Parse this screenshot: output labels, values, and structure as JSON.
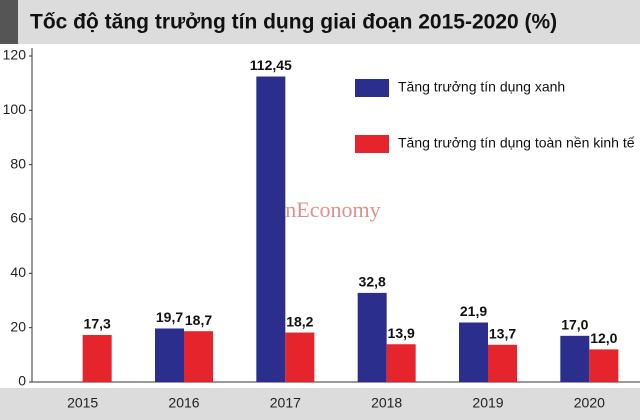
{
  "chart_data": {
    "type": "bar",
    "title": "Tốc độ tăng trưởng tín dụng giai đoạn 2015-2020 (%)",
    "watermark": "VnEconomy",
    "categories": [
      "2015",
      "2016",
      "2017",
      "2018",
      "2019",
      "2020"
    ],
    "series": [
      {
        "name": "Tăng trưởng tín dụng xanh",
        "color": "#2b2e8c",
        "values": [
          null,
          19.7,
          112.45,
          32.8,
          21.9,
          17.0
        ],
        "value_labels": [
          null,
          "19,7",
          "112,45",
          "32,8",
          "21,9",
          "17,0"
        ]
      },
      {
        "name": "Tăng trưởng tín dụng toàn nền kinh tế",
        "color": "#e5242b",
        "values": [
          17.3,
          18.7,
          18.2,
          13.9,
          13.7,
          12.0
        ],
        "value_labels": [
          "17,3",
          "18,7",
          "18,2",
          "13,9",
          "13,7",
          "12,0"
        ]
      }
    ],
    "ylim": [
      0,
      120
    ],
    "yticks": [
      0,
      20,
      40,
      60,
      80,
      100,
      120
    ],
    "grid": false
  }
}
